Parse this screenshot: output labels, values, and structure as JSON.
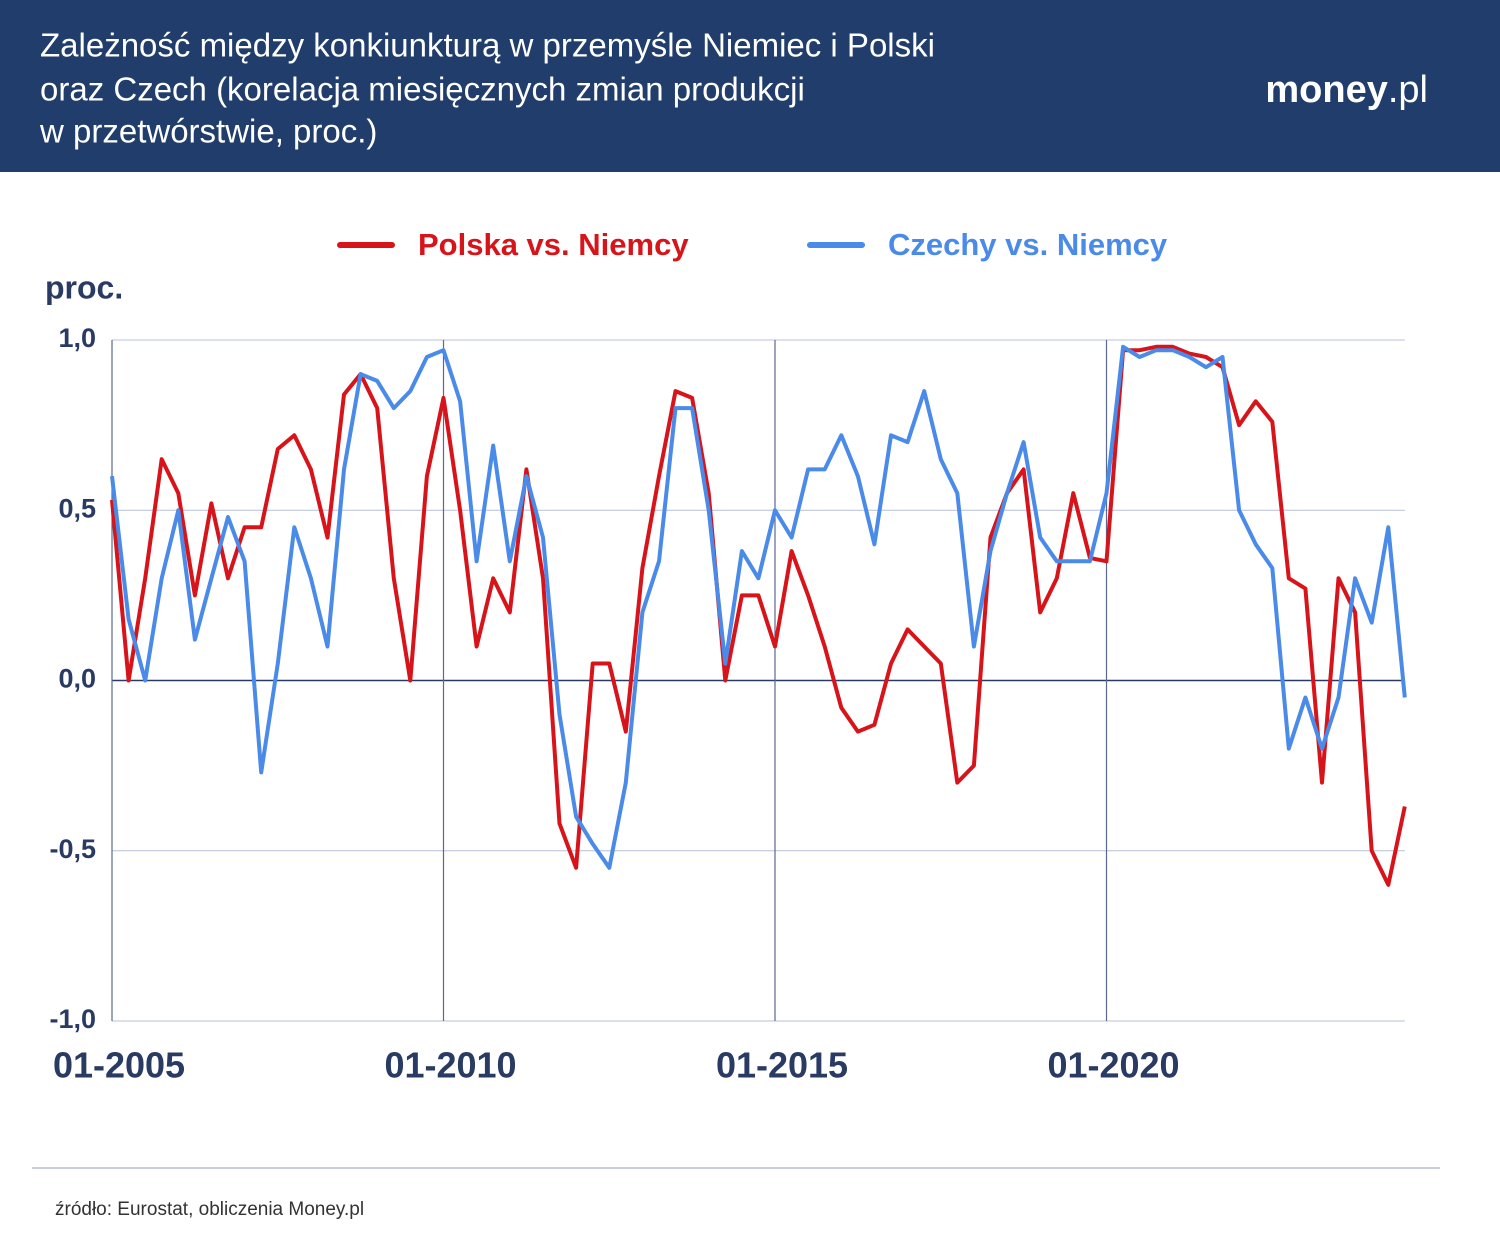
{
  "header": {
    "title": [
      "Zależność między konkiunkturą w przemyśle Niemiec i Polski",
      "oraz Czech (korelacja miesięcznych zmian produkcji",
      "w przetwórstwie, proc.)"
    ],
    "brand": [
      "money",
      ".pl"
    ]
  },
  "chart_data": {
    "type": "line",
    "y_label": "proc.",
    "x": [
      "01-2005",
      "04-2005",
      "07-2005",
      "10-2005",
      "01-2006",
      "04-2006",
      "07-2006",
      "10-2006",
      "01-2007",
      "04-2007",
      "07-2007",
      "10-2007",
      "01-2008",
      "04-2008",
      "07-2008",
      "10-2008",
      "01-2009",
      "04-2009",
      "07-2009",
      "10-2009",
      "01-2010",
      "04-2010",
      "07-2010",
      "10-2010",
      "01-2011",
      "04-2011",
      "07-2011",
      "10-2011",
      "01-2012",
      "04-2012",
      "07-2012",
      "10-2012",
      "01-2013",
      "04-2013",
      "07-2013",
      "10-2013",
      "01-2014",
      "04-2014",
      "07-2014",
      "10-2014",
      "01-2015",
      "04-2015",
      "07-2015",
      "10-2015",
      "01-2016",
      "04-2016",
      "07-2016",
      "10-2016",
      "01-2017",
      "04-2017",
      "07-2017",
      "10-2017",
      "01-2018",
      "04-2018",
      "07-2018",
      "10-2018",
      "01-2019",
      "04-2019",
      "07-2019",
      "10-2019",
      "01-2020",
      "04-2020",
      "07-2020",
      "10-2020",
      "01-2021",
      "04-2021",
      "07-2021",
      "10-2021",
      "01-2022",
      "04-2022",
      "07-2022",
      "10-2022",
      "01-2023",
      "04-2023",
      "07-2023",
      "10-2023",
      "01-2024",
      "04-2024",
      "07-2024"
    ],
    "series": [
      {
        "name": "Polska vs. Niemcy",
        "color": "#d7141a",
        "values": [
          0.53,
          0.0,
          0.3,
          0.65,
          0.55,
          0.25,
          0.52,
          0.3,
          0.45,
          0.45,
          0.68,
          0.72,
          0.62,
          0.42,
          0.84,
          0.9,
          0.8,
          0.3,
          0.0,
          0.6,
          0.83,
          0.5,
          0.1,
          0.3,
          0.2,
          0.62,
          0.3,
          -0.42,
          -0.55,
          0.05,
          0.05,
          -0.15,
          0.33,
          0.6,
          0.85,
          0.83,
          0.55,
          0.0,
          0.25,
          0.25,
          0.1,
          0.38,
          0.25,
          0.1,
          -0.08,
          -0.15,
          -0.13,
          0.05,
          0.15,
          0.1,
          0.05,
          -0.3,
          -0.25,
          0.42,
          0.55,
          0.62,
          0.2,
          0.3,
          0.55,
          0.36,
          0.35,
          0.97,
          0.97,
          0.98,
          0.98,
          0.96,
          0.95,
          0.92,
          0.75,
          0.82,
          0.76,
          0.3,
          0.27,
          -0.3,
          0.3,
          0.2,
          -0.5,
          -0.6,
          -0.37
        ]
      },
      {
        "name": "Czechy vs. Niemcy",
        "color": "#4a8ae8",
        "values": [
          0.6,
          0.18,
          0.0,
          0.3,
          0.5,
          0.12,
          0.3,
          0.48,
          0.35,
          -0.27,
          0.05,
          0.45,
          0.3,
          0.1,
          0.62,
          0.9,
          0.88,
          0.8,
          0.85,
          0.95,
          0.97,
          0.82,
          0.35,
          0.69,
          0.35,
          0.6,
          0.42,
          -0.1,
          -0.4,
          -0.48,
          -0.55,
          -0.3,
          0.2,
          0.35,
          0.8,
          0.8,
          0.5,
          0.05,
          0.38,
          0.3,
          0.5,
          0.42,
          0.62,
          0.62,
          0.72,
          0.6,
          0.4,
          0.72,
          0.7,
          0.85,
          0.65,
          0.55,
          0.1,
          0.38,
          0.55,
          0.7,
          0.42,
          0.35,
          0.35,
          0.35,
          0.55,
          0.98,
          0.95,
          0.97,
          0.97,
          0.95,
          0.92,
          0.95,
          0.5,
          0.4,
          0.33,
          -0.2,
          -0.05,
          -0.2,
          -0.05,
          0.3,
          0.17,
          0.45,
          -0.05
        ]
      }
    ],
    "xlim": [
      "01-2005",
      "07-2024"
    ],
    "xticks": [
      "01-2005",
      "01-2010",
      "01-2015",
      "01-2020"
    ],
    "ylim": [
      -1,
      1
    ],
    "yticks": [
      {
        "value": -1,
        "label": "-1,0"
      },
      {
        "value": -0.5,
        "label": "-0,5"
      },
      {
        "value": 0,
        "label": "0,0"
      },
      {
        "value": 0.5,
        "label": "0,5"
      },
      {
        "value": 1,
        "label": "1,0"
      }
    ],
    "grid": true
  },
  "footer": {
    "source": "źródło: Eurostat, obliczenia Money.pl"
  }
}
